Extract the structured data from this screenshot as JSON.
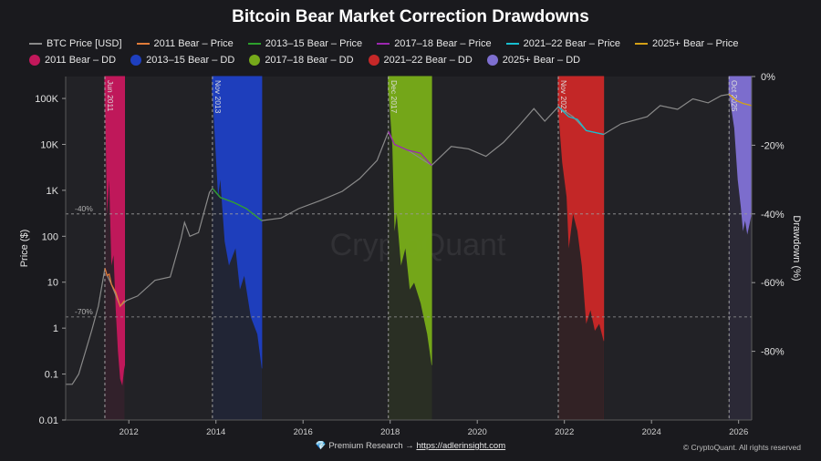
{
  "chart_data": {
    "type": "line",
    "title": "Bitcoin Bear Market Correction Drawdowns",
    "ylabel": "Price ($)",
    "y2label": "Drawdown (%)",
    "yscale": "log",
    "ylim": [
      0.01,
      300000
    ],
    "y2lim": [
      -100,
      0
    ],
    "xlim": [
      2010.55,
      2026.3
    ],
    "x_ticks": [
      2012,
      2014,
      2016,
      2018,
      2020,
      2022,
      2024,
      2026
    ],
    "y_ticks": [
      {
        "value": 0.01,
        "label": "0.01"
      },
      {
        "value": 0.1,
        "label": "0.1"
      },
      {
        "value": 1,
        "label": "1"
      },
      {
        "value": 10,
        "label": "10"
      },
      {
        "value": 100,
        "label": "100"
      },
      {
        "value": 1000,
        "label": "1K"
      },
      {
        "value": 10000,
        "label": "10K"
      },
      {
        "value": 100000,
        "label": "100K"
      }
    ],
    "y2_ticks": [
      {
        "value": 0,
        "label": "0%"
      },
      {
        "value": -20,
        "label": "-20%"
      },
      {
        "value": -40,
        "label": "-40%"
      },
      {
        "value": -60,
        "label": "-60%"
      },
      {
        "value": -80,
        "label": "-80%"
      }
    ],
    "reference_lines": [
      {
        "value": -40,
        "label": "-40%"
      },
      {
        "value": -70,
        "label": "-70%"
      }
    ],
    "legend": [
      {
        "label": "BTC Price [USD]",
        "kind": "line",
        "color": "#8a8a8a"
      },
      {
        "label": "2011 Bear – Price",
        "kind": "line",
        "color": "#e07b39"
      },
      {
        "label": "2013–15 Bear – Price",
        "kind": "line",
        "color": "#2ca02c"
      },
      {
        "label": "2017–18 Bear – Price",
        "kind": "line",
        "color": "#9c27b0"
      },
      {
        "label": "2021–22 Bear – Price",
        "kind": "line",
        "color": "#17becf"
      },
      {
        "label": "2025+ Bear – Price",
        "kind": "line",
        "color": "#d4a017"
      },
      {
        "label": "2011 Bear – DD",
        "kind": "dot",
        "color": "#c2185b"
      },
      {
        "label": "2013–15 Bear – DD",
        "kind": "dot",
        "color": "#1e3fbf"
      },
      {
        "label": "2017–18 Bear – DD",
        "kind": "dot",
        "color": "#76a91a"
      },
      {
        "label": "2021–22 Bear – DD",
        "kind": "dot",
        "color": "#c62828"
      },
      {
        "label": "2025+ Bear – DD",
        "kind": "dot",
        "color": "#7e6fd0"
      }
    ],
    "btc_price": [
      [
        2010.55,
        0.06
      ],
      [
        2010.7,
        0.06
      ],
      [
        2010.85,
        0.1
      ],
      [
        2011.0,
        0.3
      ],
      [
        2011.15,
        0.9
      ],
      [
        2011.3,
        3
      ],
      [
        2011.45,
        20
      ],
      [
        2011.5,
        14
      ],
      [
        2011.6,
        9
      ],
      [
        2011.8,
        3
      ],
      [
        2011.95,
        4
      ],
      [
        2012.2,
        5
      ],
      [
        2012.6,
        11
      ],
      [
        2012.95,
        13
      ],
      [
        2013.2,
        90
      ],
      [
        2013.28,
        200
      ],
      [
        2013.4,
        100
      ],
      [
        2013.6,
        120
      ],
      [
        2013.85,
        900
      ],
      [
        2013.92,
        1100
      ],
      [
        2014.1,
        700
      ],
      [
        2014.4,
        550
      ],
      [
        2014.7,
        400
      ],
      [
        2015.05,
        220
      ],
      [
        2015.5,
        250
      ],
      [
        2015.9,
        400
      ],
      [
        2016.4,
        600
      ],
      [
        2016.9,
        950
      ],
      [
        2017.3,
        1800
      ],
      [
        2017.7,
        4500
      ],
      [
        2017.96,
        19000
      ],
      [
        2018.1,
        10000
      ],
      [
        2018.4,
        7500
      ],
      [
        2018.95,
        3500
      ],
      [
        2019.4,
        9000
      ],
      [
        2019.8,
        8000
      ],
      [
        2020.2,
        5500
      ],
      [
        2020.6,
        11000
      ],
      [
        2020.95,
        25000
      ],
      [
        2021.3,
        60000
      ],
      [
        2021.55,
        32000
      ],
      [
        2021.86,
        66000
      ],
      [
        2022.2,
        40000
      ],
      [
        2022.5,
        20000
      ],
      [
        2022.9,
        16500
      ],
      [
        2023.3,
        28000
      ],
      [
        2023.9,
        40000
      ],
      [
        2024.2,
        70000
      ],
      [
        2024.6,
        58000
      ],
      [
        2024.95,
        98000
      ],
      [
        2025.3,
        80000
      ],
      [
        2025.6,
        115000
      ],
      [
        2025.78,
        123000
      ],
      [
        2025.95,
        90000
      ],
      [
        2026.1,
        78000
      ],
      [
        2026.3,
        70000
      ]
    ],
    "bear_markets": [
      {
        "name": "2011 Bear",
        "start_label": "Jun 2011",
        "start": 2011.45,
        "end": 2011.9,
        "color": "#c2185b",
        "price": [
          [
            2011.45,
            20
          ],
          [
            2011.5,
            14
          ],
          [
            2011.55,
            15
          ],
          [
            2011.6,
            9
          ],
          [
            2011.7,
            6
          ],
          [
            2011.8,
            3
          ],
          [
            2011.9,
            4
          ]
        ],
        "drawdown": [
          [
            2011.45,
            -5
          ],
          [
            2011.5,
            -40
          ],
          [
            2011.55,
            -30
          ],
          [
            2011.6,
            -55
          ],
          [
            2011.65,
            -52
          ],
          [
            2011.7,
            -68
          ],
          [
            2011.75,
            -80
          ],
          [
            2011.8,
            -88
          ],
          [
            2011.85,
            -90
          ],
          [
            2011.9,
            -84
          ]
        ]
      },
      {
        "name": "2013–15 Bear",
        "start_label": "Nov 2013",
        "start": 2013.92,
        "end": 2015.05,
        "color": "#1e3fbf",
        "price": [
          [
            2013.92,
            1100
          ],
          [
            2014.1,
            700
          ],
          [
            2014.4,
            550
          ],
          [
            2014.7,
            400
          ],
          [
            2015.05,
            220
          ]
        ],
        "drawdown": [
          [
            2013.92,
            -5
          ],
          [
            2014.05,
            -35
          ],
          [
            2014.1,
            -30
          ],
          [
            2014.2,
            -48
          ],
          [
            2014.3,
            -55
          ],
          [
            2014.45,
            -50
          ],
          [
            2014.55,
            -62
          ],
          [
            2014.65,
            -58
          ],
          [
            2014.8,
            -70
          ],
          [
            2014.95,
            -75
          ],
          [
            2015.05,
            -85
          ]
        ]
      },
      {
        "name": "2017–18 Bear",
        "start_label": "Dec 2017",
        "start": 2017.96,
        "end": 2018.95,
        "color": "#76a91a",
        "price": [
          [
            2017.96,
            19000
          ],
          [
            2018.1,
            10000
          ],
          [
            2018.4,
            7500
          ],
          [
            2018.7,
            6400
          ],
          [
            2018.95,
            3500
          ]
        ],
        "drawdown": [
          [
            2017.96,
            -4
          ],
          [
            2018.05,
            -20
          ],
          [
            2018.1,
            -45
          ],
          [
            2018.15,
            -40
          ],
          [
            2018.25,
            -55
          ],
          [
            2018.35,
            -50
          ],
          [
            2018.45,
            -62
          ],
          [
            2018.55,
            -60
          ],
          [
            2018.7,
            -66
          ],
          [
            2018.85,
            -75
          ],
          [
            2018.95,
            -84
          ]
        ]
      },
      {
        "name": "2021–22 Bear",
        "start_label": "Nov 2021",
        "start": 2021.86,
        "end": 2022.9,
        "color": "#c62828",
        "price": [
          [
            2021.86,
            66000
          ],
          [
            2022.1,
            40000
          ],
          [
            2022.3,
            35000
          ],
          [
            2022.5,
            20000
          ],
          [
            2022.9,
            16500
          ]
        ],
        "drawdown": [
          [
            2021.86,
            -10
          ],
          [
            2021.95,
            -25
          ],
          [
            2022.05,
            -35
          ],
          [
            2022.1,
            -50
          ],
          [
            2022.2,
            -40
          ],
          [
            2022.3,
            -45
          ],
          [
            2022.4,
            -55
          ],
          [
            2022.5,
            -72
          ],
          [
            2022.6,
            -68
          ],
          [
            2022.7,
            -74
          ],
          [
            2022.8,
            -72
          ],
          [
            2022.9,
            -77
          ]
        ]
      },
      {
        "name": "2025+ Bear",
        "start_label": "Oct 2025",
        "start": 2025.78,
        "end": 2026.3,
        "color": "#7e6fd0",
        "price": [
          [
            2025.78,
            123000
          ],
          [
            2025.95,
            90000
          ],
          [
            2026.1,
            78000
          ],
          [
            2026.3,
            70000
          ]
        ],
        "drawdown": [
          [
            2025.78,
            -5
          ],
          [
            2025.9,
            -15
          ],
          [
            2025.98,
            -30
          ],
          [
            2026.05,
            -38
          ],
          [
            2026.1,
            -45
          ],
          [
            2026.15,
            -42
          ],
          [
            2026.2,
            -46
          ],
          [
            2026.3,
            -40
          ]
        ]
      }
    ]
  },
  "watermark": "CryptoQuant",
  "footer": {
    "prefix": "Premium Research →",
    "link": "https://adlerinsight.com",
    "copyright": "© CryptoQuant. All rights reserved"
  }
}
